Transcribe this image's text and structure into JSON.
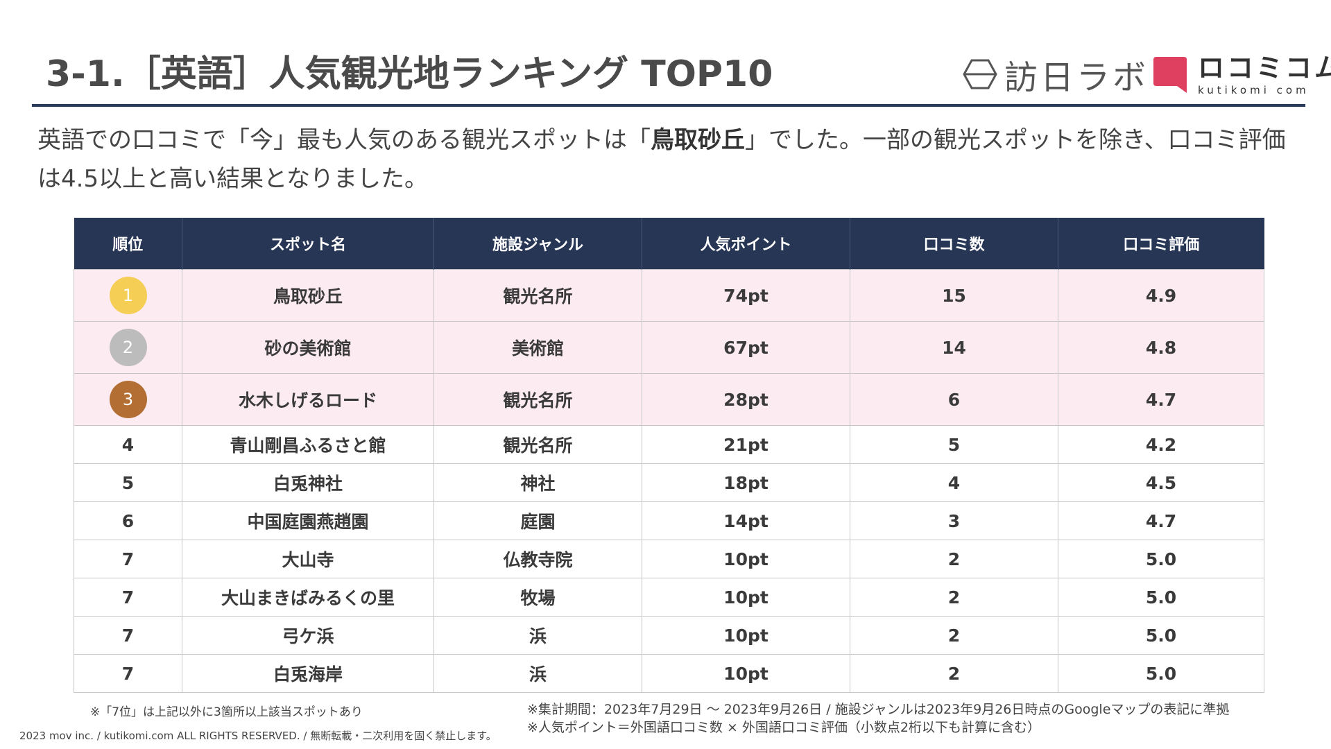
{
  "header": {
    "title": "3-1.［英語］人気観光地ランキング TOP10",
    "logo_houjin": "訪日ラボ",
    "logo_kutikomi_jp": "ロコミコム",
    "logo_kutikomi_en": "kutikomi com"
  },
  "intro": {
    "part1": "英語での口コミで「今」最も人気のある観光スポットは「",
    "highlight": "鳥取砂丘",
    "part2": "」でした。一部の観光スポットを除き、口コミ評価は4.5以上と高い結果となりました。"
  },
  "table": {
    "headers": [
      "順位",
      "スポット名",
      "施設ジャンル",
      "人気ポイント",
      "口コミ数",
      "口コミ評価"
    ],
    "rows": [
      {
        "rank": "1",
        "name": "鳥取砂丘",
        "genre": "観光名所",
        "points": "74pt",
        "reviews": "15",
        "rating": "4.9",
        "medal_color": "#f5cf55"
      },
      {
        "rank": "2",
        "name": "砂の美術館",
        "genre": "美術館",
        "points": "67pt",
        "reviews": "14",
        "rating": "4.8",
        "medal_color": "#bcbcbc"
      },
      {
        "rank": "3",
        "name": "水木しげるロード",
        "genre": "観光名所",
        "points": "28pt",
        "reviews": "6",
        "rating": "4.7",
        "medal_color": "#b36e34"
      },
      {
        "rank": "4",
        "name": "青山剛昌ふるさと館",
        "genre": "観光名所",
        "points": "21pt",
        "reviews": "5",
        "rating": "4.2"
      },
      {
        "rank": "5",
        "name": "白兎神社",
        "genre": "神社",
        "points": "18pt",
        "reviews": "4",
        "rating": "4.5"
      },
      {
        "rank": "6",
        "name": "中国庭園燕趙園",
        "genre": "庭園",
        "points": "14pt",
        "reviews": "3",
        "rating": "4.7"
      },
      {
        "rank": "7",
        "name": "大山寺",
        "genre": "仏教寺院",
        "points": "10pt",
        "reviews": "2",
        "rating": "5.0"
      },
      {
        "rank": "7",
        "name": "大山まきばみるくの里",
        "genre": "牧場",
        "points": "10pt",
        "reviews": "2",
        "rating": "5.0"
      },
      {
        "rank": "7",
        "name": "弓ケ浜",
        "genre": "浜",
        "points": "10pt",
        "reviews": "2",
        "rating": "5.0"
      },
      {
        "rank": "7",
        "name": "白兎海岸",
        "genre": "浜",
        "points": "10pt",
        "reviews": "2",
        "rating": "5.0"
      }
    ]
  },
  "notes": {
    "left": "※「7位」は上記以外に3箇所以上該当スポットあり",
    "right1": "※集計期間：2023年7月29日 〜 2023年9月26日 / 施設ジャンルは2023年9月26日時点のGoogleマップの表記に準拠",
    "right2": "※人気ポイント＝外国語口コミ数 × 外国語口コミ評価（小数点2桁以下も計算に含む）",
    "copyright": "2023 mov inc. / kutikomi.com ALL RIGHTS RESERVED. / 無断転載・二次利用を固く禁止します。"
  },
  "colors": {
    "header_bg": "#283656",
    "top3_row_bg": "#fcebf0",
    "brand_pink": "#e0405f"
  }
}
